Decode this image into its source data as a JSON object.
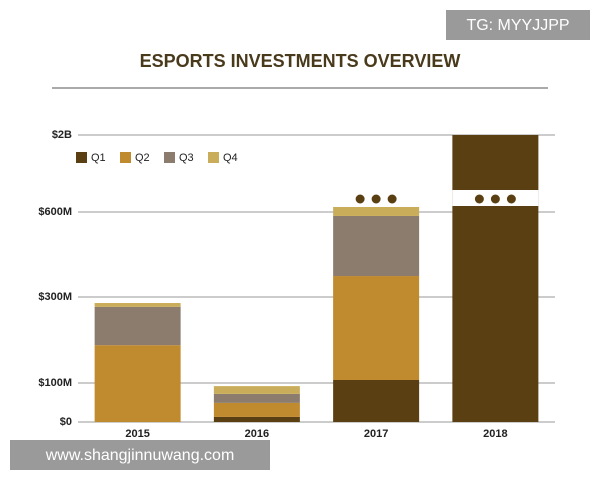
{
  "chart_data": {
    "type": "stacked-bar",
    "title": "ESPORTS INVESTMENTS OVERVIEW",
    "categories": [
      "2015",
      "2016",
      "2017",
      "2018"
    ],
    "series": [
      {
        "name": "Q1",
        "color": "#5a3f13",
        "values": [
          0,
          13,
          107,
          2000
        ]
      },
      {
        "name": "Q2",
        "color": "#c08a2f",
        "values": [
          188,
          36,
          267,
          0
        ]
      },
      {
        "name": "Q3",
        "color": "#8c7c6e",
        "values": [
          89,
          23,
          212,
          0
        ]
      },
      {
        "name": "Q4",
        "color": "#c9ad5a",
        "values": [
          9,
          20,
          105,
          0
        ]
      }
    ],
    "ylim": [
      0,
      2000
    ],
    "yticks": [
      {
        "value": 0,
        "label": "$0"
      },
      {
        "value": 100,
        "label": "$100M"
      },
      {
        "value": 300,
        "label": "$300M"
      },
      {
        "value": 600,
        "label": "$600M"
      },
      {
        "value": 2000,
        "label": "$2B"
      }
    ],
    "grid": true,
    "legend": "top-left"
  },
  "watermarks": [
    "TG: MYYJJPP",
    "www.shangjinnuwang.com"
  ]
}
